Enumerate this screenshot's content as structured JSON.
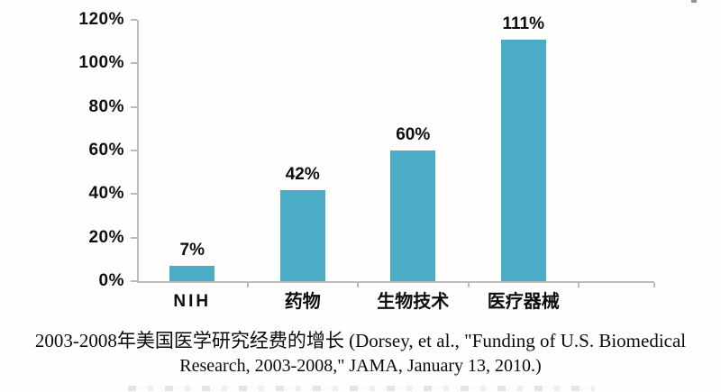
{
  "chart_data": {
    "type": "bar",
    "title": "2003-2008年美国医学研究经费的增长",
    "source_note": "(Dorsey, et al., \"Funding of U.S. Biomedical Research, 2003-2008,\" JAMA, January 13, 2010.)",
    "categories": [
      "NIH",
      "药物",
      "生物技术",
      "医疗器械"
    ],
    "values": [
      7,
      42,
      60,
      111
    ],
    "value_labels": [
      "7%",
      "42%",
      "60%",
      "111%"
    ],
    "xlabel": "",
    "ylabel": "",
    "ylim": [
      0,
      120
    ],
    "y_ticks": {
      "values": [
        120,
        100,
        80,
        60,
        40,
        20,
        0
      ],
      "labels": [
        "120%",
        "100%",
        "80%",
        "60%",
        "40%",
        "20%",
        "0%"
      ]
    },
    "grid": false,
    "legend": false,
    "bar_color": "#4BACC6",
    "axis_color": "#b7bcbc",
    "text_color": "#0d0d0d"
  },
  "caption": {
    "line1": "2003-2008年美国医学研究经费的增长 (Dorsey, et al., \"Funding of U.S. Biomedical",
    "line2": "Research, 2003-2008,\" JAMA, January 13, 2010.)"
  }
}
